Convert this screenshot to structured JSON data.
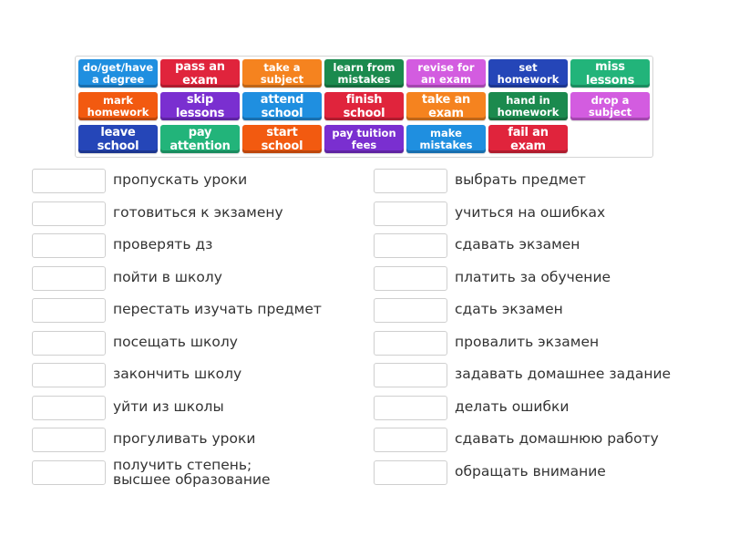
{
  "tiles": [
    {
      "label": "do/get/have\na degree",
      "color": "#1f8fe0",
      "lines": 2
    },
    {
      "label": "pass an exam",
      "color": "#e0243c",
      "lines": 1
    },
    {
      "label": "take a\nsubject",
      "color": "#f5831f",
      "lines": 2
    },
    {
      "label": "learn from\nmistakes",
      "color": "#1b8a4e",
      "lines": 2
    },
    {
      "label": "revise for\nan exam",
      "color": "#d35ce0",
      "lines": 2
    },
    {
      "label": "set\nhomework",
      "color": "#2546b8",
      "lines": 2
    },
    {
      "label": "miss lessons",
      "color": "#22b47a",
      "lines": 1
    },
    {
      "label": "mark\nhomework",
      "color": "#f25a10",
      "lines": 2
    },
    {
      "label": "skip lessons",
      "color": "#7a2fd0",
      "lines": 1
    },
    {
      "label": "attend school",
      "color": "#1f8fe0",
      "lines": 1
    },
    {
      "label": "finish school",
      "color": "#e0243c",
      "lines": 1
    },
    {
      "label": "take an exam",
      "color": "#f5831f",
      "lines": 1
    },
    {
      "label": "hand in\nhomework",
      "color": "#1b8a4e",
      "lines": 2
    },
    {
      "label": "drop a\nsubject",
      "color": "#d35ce0",
      "lines": 2
    },
    {
      "label": "leave school",
      "color": "#2546b8",
      "lines": 1
    },
    {
      "label": "pay attention",
      "color": "#22b47a",
      "lines": 1
    },
    {
      "label": "start school",
      "color": "#f25a10",
      "lines": 1
    },
    {
      "label": "pay tuition\nfees",
      "color": "#7a2fd0",
      "lines": 2
    },
    {
      "label": "make\nmistakes",
      "color": "#1f8fe0",
      "lines": 2
    },
    {
      "label": "fail an exam",
      "color": "#e0243c",
      "lines": 1
    }
  ],
  "left_items": [
    "пропускать уроки",
    "готовиться к экзамену",
    "проверять дз",
    "пойти в школу",
    "перестать изучать предмет",
    "посещать школу",
    "закончить школу",
    "уйти из школы",
    "прогуливать уроки",
    "получить степень;\nвысшее образование"
  ],
  "right_items": [
    "выбрать предмет",
    "учиться на ошибках",
    "сдавать экзамен",
    "платить за обучение",
    "сдать экзамен",
    "провалить экзамен",
    "задавать домашнее задание",
    "делать ошибки",
    "сдавать домашнюю работу",
    "обращать внимание"
  ]
}
